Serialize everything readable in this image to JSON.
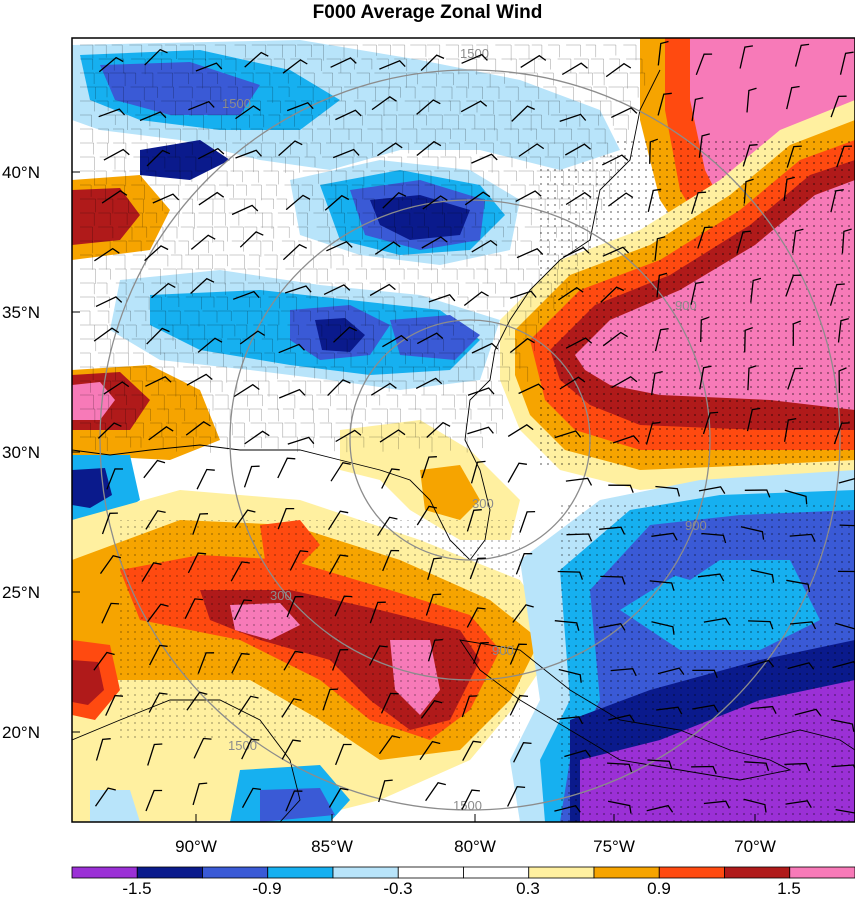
{
  "title": "F000 Average Zonal Wind",
  "map": {
    "lat_labels": [
      "40°N",
      "35°N",
      "30°N",
      "25°N",
      "20°N"
    ],
    "lon_labels": [
      "90°W",
      "85°W",
      "80°W",
      "75°W",
      "70°W"
    ],
    "ring_labels": [
      "1500",
      "1500",
      "1500",
      "900",
      "900",
      "900",
      "300",
      "300",
      "1500"
    ]
  },
  "colorbar": {
    "labels": [
      "-1.5",
      "-0.9",
      "-0.3",
      "0.3",
      "0.9",
      "1.5"
    ],
    "colors": [
      "#9b30d6",
      "#0a1a8c",
      "#3a5ad6",
      "#16b0f0",
      "#b8e4fa",
      "#ffffff",
      "#ffffff",
      "#fff0a0",
      "#f6a400",
      "#ff4a10",
      "#b01a1a",
      "#f77ab8"
    ]
  },
  "palette": {
    "land_line": "#000000",
    "ring": "#8c8c8c",
    "pink": "#f77ab8",
    "darkred": "#b01a1a",
    "red": "#ff4a10",
    "orange": "#f6a400",
    "yellow": "#fff0a0",
    "lightblue": "#b8e4fa",
    "cyan": "#16b0f0",
    "blue": "#3a5ad6",
    "navy": "#0a1a8c",
    "purple": "#9b30d6"
  }
}
